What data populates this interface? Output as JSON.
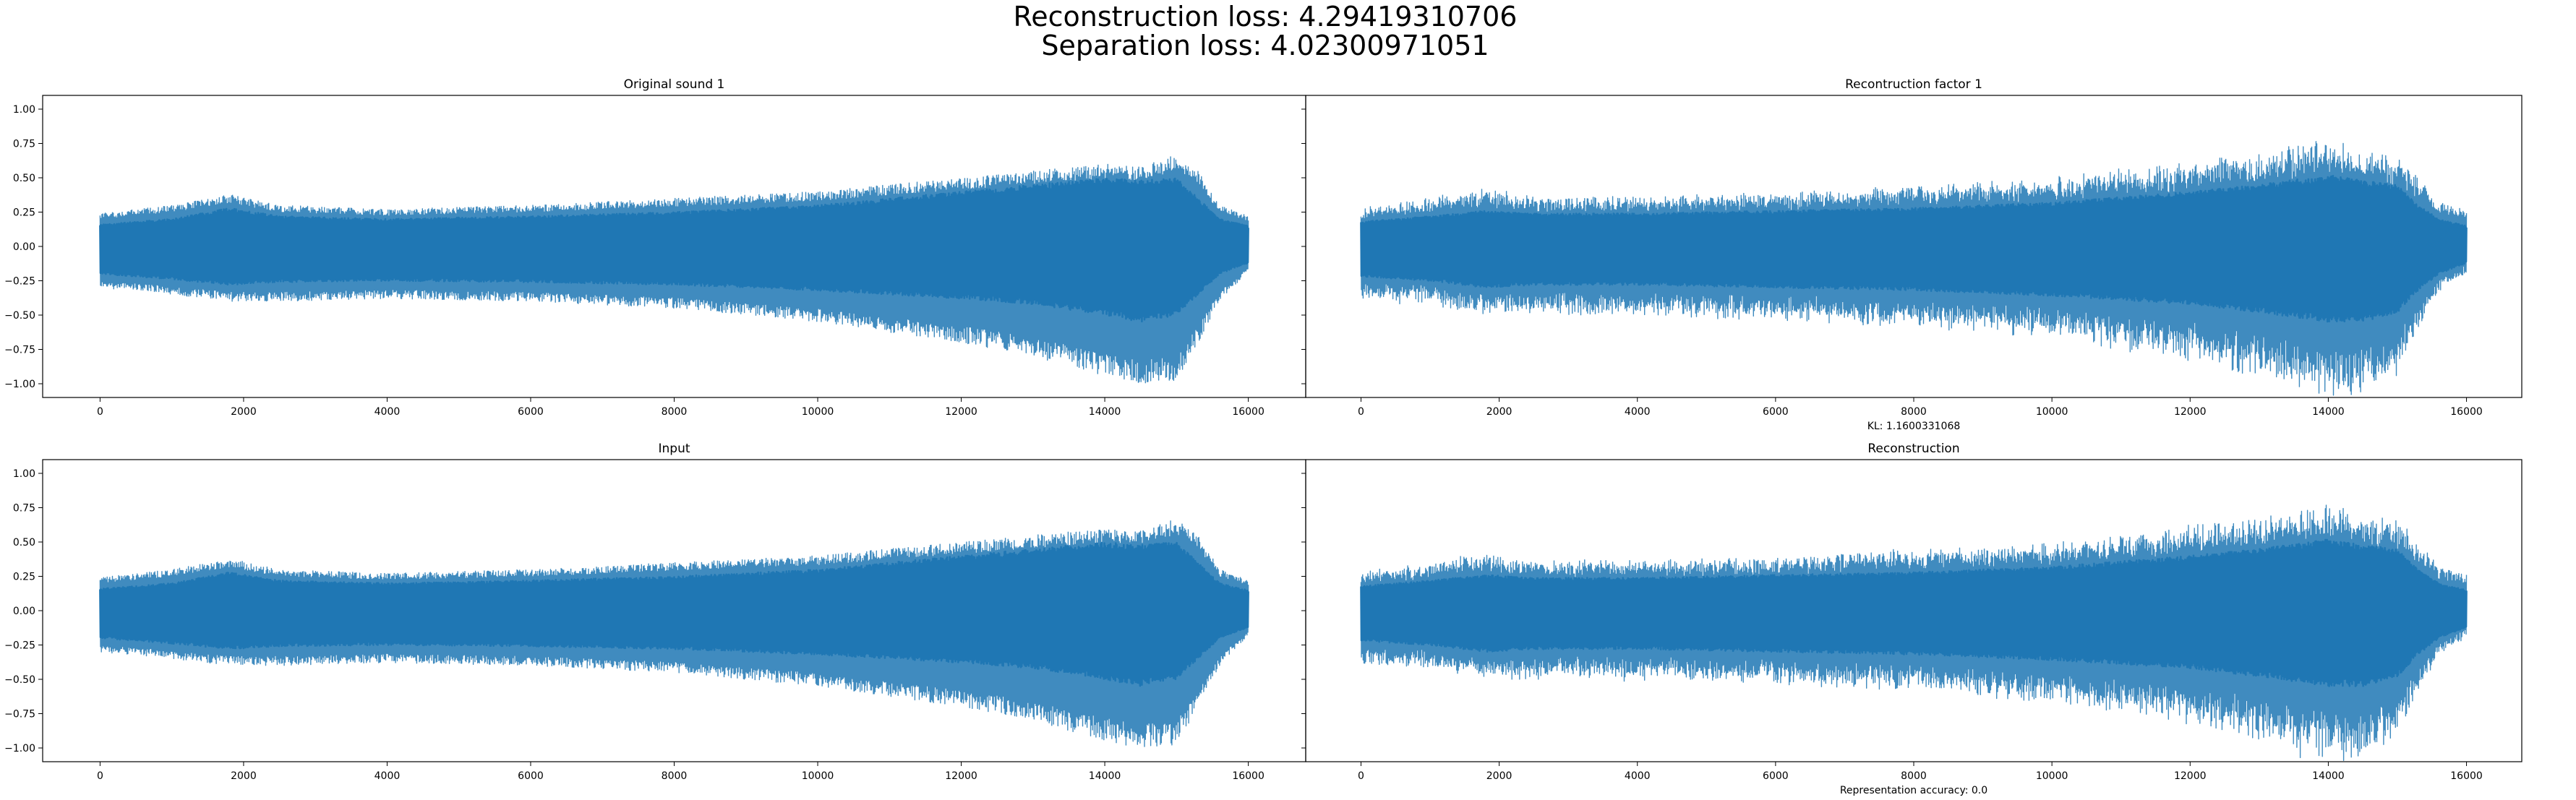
{
  "figure": {
    "suptitle_line1": "Reconstruction loss: 4.29419310706",
    "suptitle_line2": "Separation loss: 4.02300971051"
  },
  "colors": {
    "series": "#1f77b4",
    "axes": "#000000",
    "background": "#ffffff"
  },
  "chart_data": [
    {
      "type": "line",
      "title": "Original sound 1",
      "xlabel": "",
      "ylabel": "",
      "xlim": [
        -800,
        16800
      ],
      "ylim": [
        -1.1,
        1.1
      ],
      "xticks": [
        0,
        2000,
        4000,
        6000,
        8000,
        10000,
        12000,
        14000,
        16000
      ],
      "yticks": [
        -1.0,
        -0.75,
        -0.5,
        -0.25,
        0.0,
        0.25,
        0.5,
        0.75,
        1.0
      ],
      "ytick_labels": [
        "−1.00",
        "−0.75",
        "−0.50",
        "−0.25",
        "0.00",
        "0.25",
        "0.50",
        "0.75",
        "1.00"
      ],
      "show_yticklabels": true,
      "grid": false,
      "series": [
        {
          "envelope_x": [
            0,
            1000,
            1800,
            2500,
            4000,
            6000,
            8000,
            10000,
            12000,
            13000,
            14000,
            14500,
            15000,
            15300,
            15600,
            16000
          ],
          "upper": [
            0.24,
            0.3,
            0.38,
            0.3,
            0.27,
            0.3,
            0.35,
            0.4,
            0.5,
            0.55,
            0.6,
            0.58,
            0.67,
            0.55,
            0.3,
            0.22
          ],
          "lower": [
            -0.3,
            -0.35,
            -0.4,
            -0.4,
            -0.38,
            -0.4,
            -0.45,
            -0.55,
            -0.7,
            -0.8,
            -0.95,
            -1.0,
            -0.98,
            -0.7,
            -0.4,
            -0.18
          ],
          "core_upper": [
            0.16,
            0.2,
            0.28,
            0.22,
            0.2,
            0.22,
            0.25,
            0.3,
            0.4,
            0.45,
            0.5,
            0.48,
            0.5,
            0.35,
            0.2,
            0.15
          ],
          "core_lower": [
            -0.2,
            -0.24,
            -0.28,
            -0.26,
            -0.25,
            -0.26,
            -0.28,
            -0.32,
            -0.38,
            -0.42,
            -0.5,
            -0.55,
            -0.5,
            -0.35,
            -0.2,
            -0.12
          ],
          "noise": 0.0
        }
      ]
    },
    {
      "type": "line",
      "title": "Recontruction factor 1",
      "xlabel": "KL: 1.1600331068",
      "ylabel": "",
      "xlim": [
        -800,
        16800
      ],
      "ylim": [
        -1.1,
        1.1
      ],
      "xticks": [
        0,
        2000,
        4000,
        6000,
        8000,
        10000,
        12000,
        14000,
        16000
      ],
      "yticks": [
        -1.0,
        -0.75,
        -0.5,
        -0.25,
        0.0,
        0.25,
        0.5,
        0.75,
        1.0
      ],
      "show_yticklabels": false,
      "grid": false,
      "series": [
        {
          "envelope_x": [
            0,
            1000,
            1800,
            2500,
            4000,
            6000,
            8000,
            10000,
            12000,
            13000,
            14000,
            14500,
            15000,
            15300,
            15600,
            16000
          ],
          "upper": [
            0.25,
            0.32,
            0.38,
            0.33,
            0.33,
            0.35,
            0.4,
            0.45,
            0.55,
            0.6,
            0.7,
            0.62,
            0.6,
            0.45,
            0.3,
            0.25
          ],
          "lower": [
            -0.35,
            -0.38,
            -0.45,
            -0.45,
            -0.45,
            -0.48,
            -0.52,
            -0.6,
            -0.75,
            -0.85,
            -1.0,
            -0.95,
            -0.85,
            -0.55,
            -0.3,
            -0.18
          ],
          "core_upper": [
            0.18,
            0.22,
            0.26,
            0.24,
            0.24,
            0.26,
            0.28,
            0.32,
            0.4,
            0.45,
            0.52,
            0.48,
            0.45,
            0.3,
            0.2,
            0.15
          ],
          "core_lower": [
            -0.22,
            -0.25,
            -0.3,
            -0.28,
            -0.28,
            -0.3,
            -0.32,
            -0.36,
            -0.42,
            -0.48,
            -0.55,
            -0.55,
            -0.48,
            -0.32,
            -0.2,
            -0.12
          ],
          "noise": 0.06
        }
      ]
    },
    {
      "type": "line",
      "title": "Input",
      "xlabel": "",
      "ylabel": "",
      "xlim": [
        -800,
        16800
      ],
      "ylim": [
        -1.1,
        1.1
      ],
      "xticks": [
        0,
        2000,
        4000,
        6000,
        8000,
        10000,
        12000,
        14000,
        16000
      ],
      "yticks": [
        -1.0,
        -0.75,
        -0.5,
        -0.25,
        0.0,
        0.25,
        0.5,
        0.75,
        1.0
      ],
      "ytick_labels": [
        "−1.00",
        "−0.75",
        "−0.50",
        "−0.25",
        "0.00",
        "0.25",
        "0.50",
        "0.75",
        "1.00"
      ],
      "show_yticklabels": true,
      "grid": false,
      "series": [
        {
          "envelope_x": [
            0,
            1000,
            1800,
            2500,
            4000,
            6000,
            8000,
            10000,
            12000,
            13000,
            14000,
            14500,
            15000,
            15300,
            15600,
            16000
          ],
          "upper": [
            0.24,
            0.3,
            0.38,
            0.3,
            0.27,
            0.3,
            0.35,
            0.4,
            0.5,
            0.55,
            0.6,
            0.58,
            0.67,
            0.55,
            0.3,
            0.22
          ],
          "lower": [
            -0.3,
            -0.35,
            -0.4,
            -0.4,
            -0.38,
            -0.4,
            -0.45,
            -0.55,
            -0.7,
            -0.8,
            -0.95,
            -1.0,
            -0.98,
            -0.7,
            -0.4,
            -0.18
          ],
          "core_upper": [
            0.16,
            0.2,
            0.28,
            0.22,
            0.2,
            0.22,
            0.25,
            0.3,
            0.4,
            0.45,
            0.5,
            0.48,
            0.5,
            0.35,
            0.2,
            0.15
          ],
          "core_lower": [
            -0.2,
            -0.24,
            -0.28,
            -0.26,
            -0.25,
            -0.26,
            -0.28,
            -0.32,
            -0.38,
            -0.42,
            -0.5,
            -0.55,
            -0.5,
            -0.35,
            -0.2,
            -0.12
          ],
          "noise": 0.0
        }
      ]
    },
    {
      "type": "line",
      "title": "Reconstruction",
      "xlabel": "Representation accuracy: 0.0",
      "ylabel": "",
      "xlim": [
        -800,
        16800
      ],
      "ylim": [
        -1.1,
        1.1
      ],
      "xticks": [
        0,
        2000,
        4000,
        6000,
        8000,
        10000,
        12000,
        14000,
        16000
      ],
      "yticks": [
        -1.0,
        -0.75,
        -0.5,
        -0.25,
        0.0,
        0.25,
        0.5,
        0.75,
        1.0
      ],
      "show_yticklabels": false,
      "grid": false,
      "series": [
        {
          "envelope_x": [
            0,
            1000,
            1800,
            2500,
            4000,
            6000,
            8000,
            10000,
            12000,
            13000,
            14000,
            14500,
            15000,
            15300,
            15600,
            16000
          ],
          "upper": [
            0.25,
            0.32,
            0.38,
            0.33,
            0.33,
            0.35,
            0.4,
            0.45,
            0.55,
            0.6,
            0.7,
            0.62,
            0.6,
            0.45,
            0.3,
            0.25
          ],
          "lower": [
            -0.35,
            -0.38,
            -0.45,
            -0.45,
            -0.45,
            -0.48,
            -0.52,
            -0.6,
            -0.75,
            -0.85,
            -1.0,
            -0.95,
            -0.85,
            -0.55,
            -0.3,
            -0.18
          ],
          "core_upper": [
            0.18,
            0.22,
            0.26,
            0.24,
            0.24,
            0.26,
            0.28,
            0.32,
            0.4,
            0.45,
            0.52,
            0.48,
            0.45,
            0.3,
            0.2,
            0.15
          ],
          "core_lower": [
            -0.22,
            -0.25,
            -0.3,
            -0.28,
            -0.28,
            -0.3,
            -0.32,
            -0.36,
            -0.42,
            -0.48,
            -0.55,
            -0.55,
            -0.48,
            -0.32,
            -0.2,
            -0.12
          ],
          "noise": 0.06
        }
      ]
    }
  ]
}
